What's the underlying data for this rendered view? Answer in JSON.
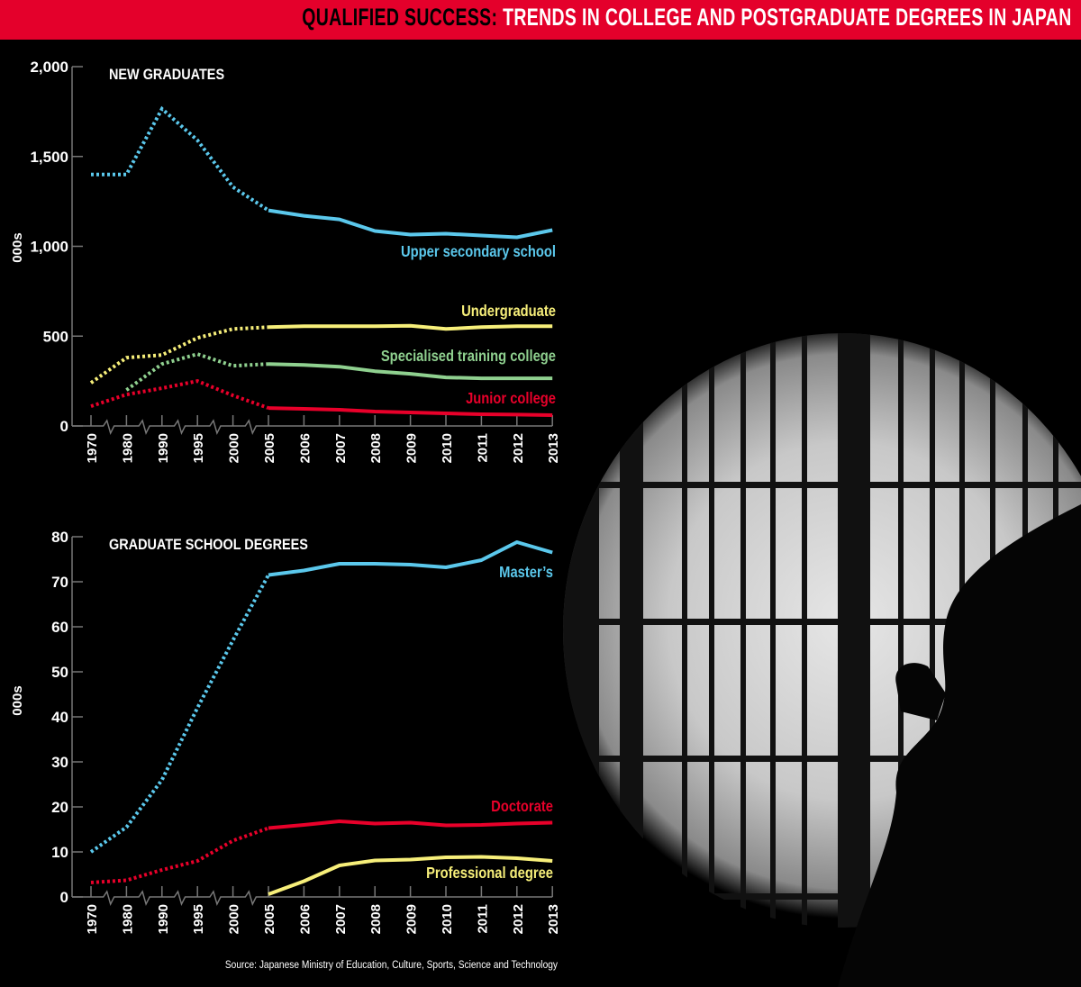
{
  "header": {
    "title_lead": "QUALIFIED SUCCESS:",
    "title_rest": " TRENDS IN COLLEGE AND POSTGRADUATE DEGREES IN JAPAN"
  },
  "source": "Source: Japanese Ministry of Education, Culture, Sports, Science and Technology",
  "colors": {
    "accent": "#e4002b",
    "blue": "#5bc8ec",
    "yellow": "#f7ef7a",
    "green": "#8fd08f",
    "red": "#e8002a"
  },
  "chart_data": [
    {
      "type": "line",
      "title": "NEW GRADUATES",
      "ylabel": "000s",
      "ylim": [
        0,
        2000
      ],
      "yticks": [
        "0",
        "500",
        "1,000",
        "1,500",
        "2,000"
      ],
      "ytick_values": [
        0,
        500,
        1000,
        1500,
        2000
      ],
      "categories": [
        "1970",
        "1980",
        "1990",
        "1995",
        "2000",
        "2005",
        "2006",
        "2007",
        "2008",
        "2009",
        "2010",
        "2011",
        "2012",
        "2013"
      ],
      "dotted_until": "2005",
      "series": [
        {
          "name": "Upper secondary school",
          "color": "#5bc8ec",
          "values": [
            1400,
            1400,
            1765,
            1590,
            1330,
            1200,
            1170,
            1150,
            1085,
            1065,
            1070,
            1060,
            1050,
            1090
          ]
        },
        {
          "name": "Undergraduate",
          "color": "#f7ef7a",
          "values": [
            240,
            380,
            395,
            490,
            540,
            550,
            555,
            555,
            555,
            558,
            540,
            550,
            555,
            555
          ]
        },
        {
          "name": "Specialised training college",
          "color": "#8fd08f",
          "values": [
            null,
            200,
            345,
            400,
            335,
            345,
            340,
            330,
            305,
            290,
            270,
            265,
            265,
            265
          ]
        },
        {
          "name": "Junior college",
          "color": "#e8002a",
          "values": [
            110,
            175,
            210,
            250,
            170,
            100,
            95,
            90,
            80,
            75,
            70,
            65,
            63,
            60
          ]
        }
      ]
    },
    {
      "type": "line",
      "title": "GRADUATE SCHOOL DEGREES",
      "ylabel": "000s",
      "ylim": [
        0,
        80
      ],
      "yticks": [
        "0",
        "10",
        "20",
        "30",
        "40",
        "50",
        "60",
        "70",
        "80"
      ],
      "ytick_values": [
        0,
        10,
        20,
        30,
        40,
        50,
        60,
        70,
        80
      ],
      "categories": [
        "1970",
        "1980",
        "1990",
        "1995",
        "2000",
        "2005",
        "2006",
        "2007",
        "2008",
        "2009",
        "2010",
        "2011",
        "2012",
        "2013"
      ],
      "dotted_until": "2005",
      "series": [
        {
          "name": "Master’s",
          "color": "#5bc8ec",
          "values": [
            10,
            15.5,
            26,
            42,
            57,
            71.5,
            72.5,
            74,
            74,
            73.8,
            73.2,
            74.8,
            78.8,
            76.5
          ]
        },
        {
          "name": "Doctorate",
          "color": "#e8002a",
          "values": [
            3.2,
            3.7,
            6,
            8,
            12.5,
            15.3,
            16,
            16.8,
            16.3,
            16.5,
            15.9,
            16,
            16.3,
            16.5
          ]
        },
        {
          "name": "Professional degree",
          "color": "#f7ef7a",
          "values": [
            null,
            null,
            null,
            null,
            null,
            0.6,
            3.5,
            7,
            8.1,
            8.3,
            8.8,
            8.9,
            8.6,
            8
          ]
        }
      ]
    }
  ]
}
